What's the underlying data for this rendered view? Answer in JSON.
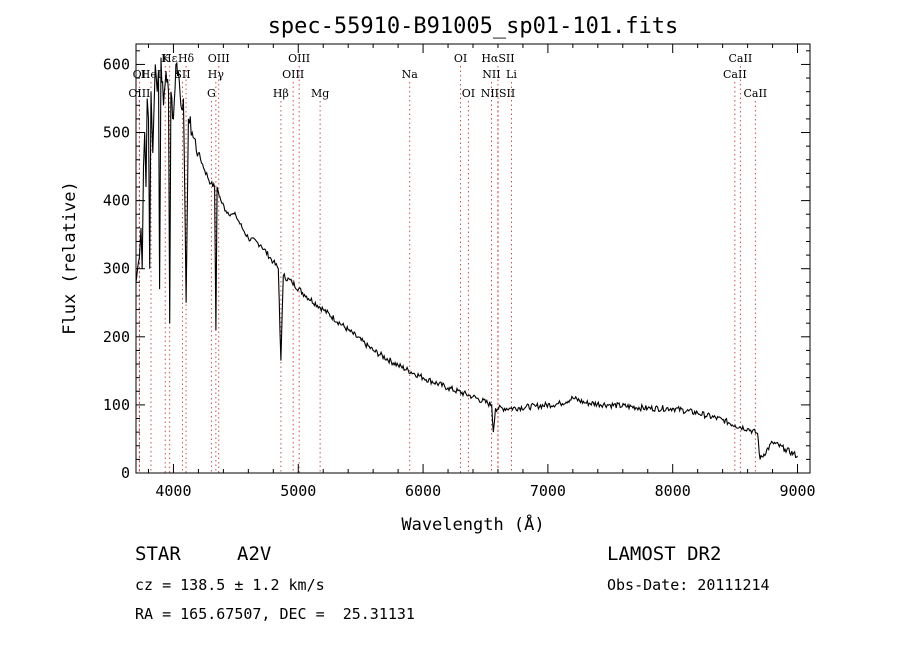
{
  "chart_data": {
    "type": "line",
    "title": "spec-55910-B91005_sp01-101.fits",
    "xlabel": "Wavelength (Å)",
    "ylabel": "Flux (relative)",
    "xlim": [
      3700,
      9100
    ],
    "ylim": [
      0,
      630
    ],
    "xticks": [
      4000,
      5000,
      6000,
      7000,
      8000,
      9000
    ],
    "yticks": [
      0,
      100,
      200,
      300,
      400,
      500,
      600
    ],
    "grid": false,
    "series": [
      {
        "x": [
          3700,
          3720,
          3740,
          3750,
          3760,
          3770,
          3780,
          3790,
          3800,
          3810,
          3820,
          3835,
          3845,
          3855,
          3870,
          3880,
          3889,
          3900,
          3920,
          3940,
          3960,
          3970,
          3980,
          4000,
          4020,
          4040,
          4060,
          4080,
          4101,
          4120,
          4150,
          4200,
          4250,
          4300,
          4330,
          4340,
          4350,
          4380,
          4420,
          4470,
          4500,
          4550,
          4600,
          4700,
          4800,
          4840,
          4861,
          4880,
          4950,
          5050,
          5200,
          5400,
          5600,
          5800,
          6000,
          6200,
          6400,
          6550,
          6563,
          6580,
          6700,
          6900,
          7100,
          7200,
          7300,
          7500,
          7800,
          8000,
          8200,
          8400,
          8500,
          8600,
          8680,
          8700,
          8800,
          8900,
          9000
        ],
        "values": [
          280,
          310,
          360,
          300,
          450,
          500,
          420,
          550,
          520,
          300,
          560,
          470,
          540,
          600,
          560,
          590,
          270,
          610,
          540,
          590,
          560,
          220,
          560,
          520,
          600,
          590,
          540,
          550,
          250,
          520,
          500,
          470,
          445,
          425,
          420,
          210,
          420,
          400,
          385,
          380,
          378,
          360,
          345,
          335,
          310,
          300,
          165,
          290,
          280,
          262,
          240,
          210,
          180,
          158,
          140,
          125,
          112,
          100,
          60,
          95,
          95,
          98,
          102,
          110,
          103,
          100,
          95,
          95,
          88,
          78,
          70,
          65,
          58,
          20,
          45,
          35,
          25
        ]
      }
    ],
    "lines": [
      {
        "label": "Hε",
        "x": 3970,
        "row": 1
      },
      {
        "label": "K",
        "x": 3934,
        "row": 1
      },
      {
        "label": "Hδ",
        "x": 4101,
        "row": 1
      },
      {
        "label": "OIII",
        "x": 4363,
        "row": 1
      },
      {
        "label": "OIII",
        "x": 5007,
        "row": 1
      },
      {
        "label": "OI",
        "x": 6300,
        "row": 1
      },
      {
        "label": "HαSII",
        "x": 6600,
        "row": 1
      },
      {
        "label": "CaII",
        "x": 8542,
        "row": 1
      },
      {
        "label": "OI",
        "x": 3727,
        "row": 2
      },
      {
        "label": "HeI",
        "x": 3820,
        "row": 2
      },
      {
        "label": "SII",
        "x": 4072,
        "row": 2
      },
      {
        "label": "Hγ",
        "x": 4340,
        "row": 2
      },
      {
        "label": "OIII",
        "x": 4959,
        "row": 2
      },
      {
        "label": "Na",
        "x": 5893,
        "row": 2
      },
      {
        "label": "NII",
        "x": 6548,
        "row": 2
      },
      {
        "label": "Li",
        "x": 6708,
        "row": 2
      },
      {
        "label": "CaII",
        "x": 8498,
        "row": 2
      },
      {
        "label": "OIII",
        "x": 3727,
        "row": 3
      },
      {
        "label": "G",
        "x": 4304,
        "row": 3
      },
      {
        "label": "Hβ",
        "x": 4861,
        "row": 3
      },
      {
        "label": "Mg",
        "x": 5175,
        "row": 3
      },
      {
        "label": "OI",
        "x": 6363,
        "row": 3
      },
      {
        "label": "NIISII",
        "x": 6600,
        "row": 3
      },
      {
        "label": "CaII",
        "x": 8662,
        "row": 3
      }
    ]
  },
  "info": {
    "class": "STAR",
    "subclass": "A2V",
    "survey": "LAMOST DR2",
    "cz": "cz = 138.5 ± 1.2 km/s",
    "obs_date": "Obs-Date: 20111214",
    "coords": "RA = 165.67507, DEC =  25.31131"
  }
}
